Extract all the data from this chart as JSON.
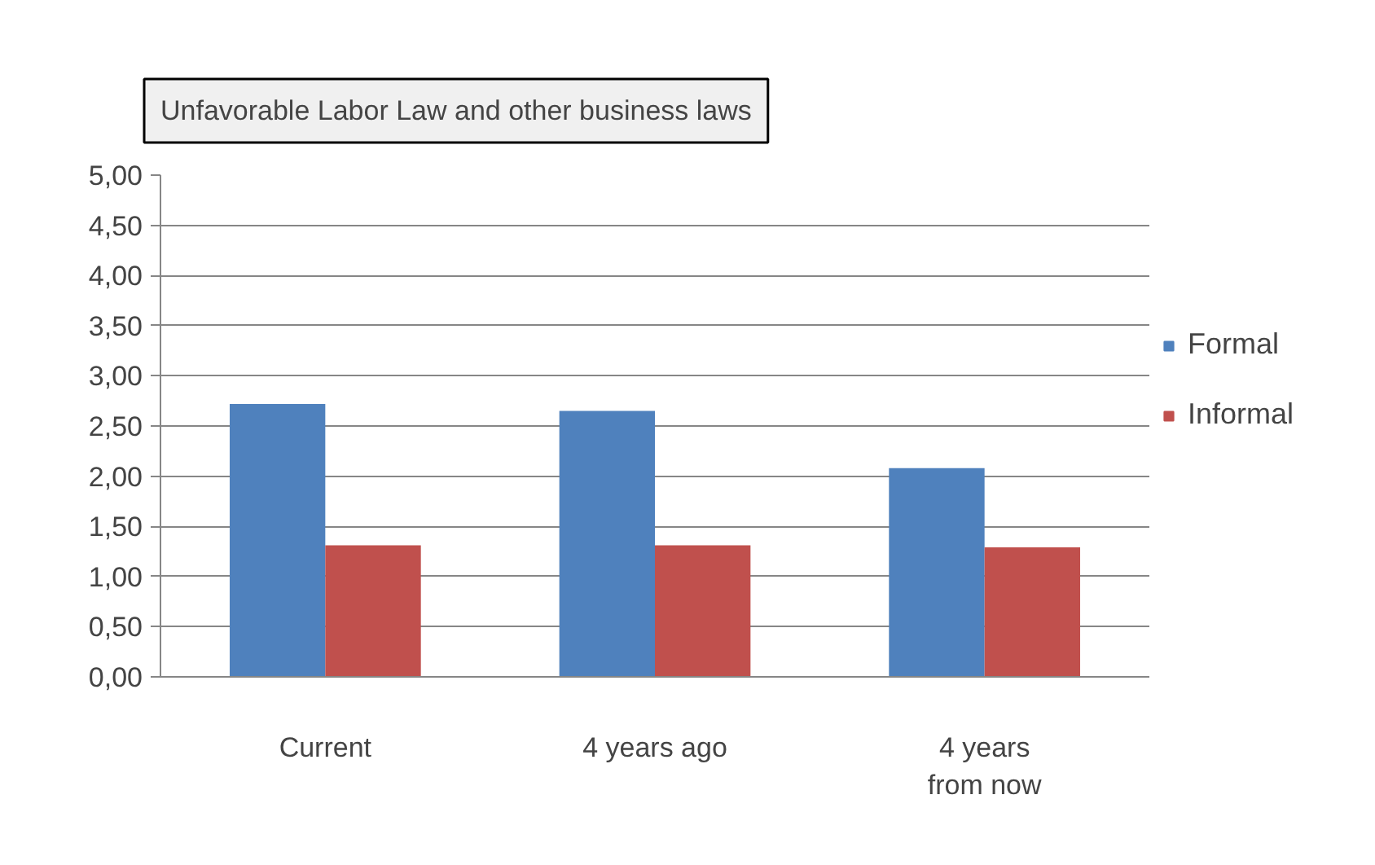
{
  "chart_data": {
    "type": "bar",
    "title": "Unfavorable Labor Law and other business laws",
    "categories": [
      "Current",
      "4 years ago",
      "4 years\nfrom now"
    ],
    "series": [
      {
        "name": "Formal",
        "color": "#4f81bd",
        "values": [
          2.72,
          2.65,
          2.08
        ]
      },
      {
        "name": "Informal",
        "color": "#c0504d",
        "values": [
          1.31,
          1.31,
          1.29
        ]
      }
    ],
    "ylim": [
      0,
      5
    ],
    "yticks": [
      {
        "value": 0,
        "label": "0,00"
      },
      {
        "value": 0.5,
        "label": "0,50"
      },
      {
        "value": 1,
        "label": "1,00"
      },
      {
        "value": 1.5,
        "label": "1,50"
      },
      {
        "value": 2,
        "label": "2,00"
      },
      {
        "value": 2.5,
        "label": "2,50"
      },
      {
        "value": 3,
        "label": "3,00"
      },
      {
        "value": 3.5,
        "label": "3,50"
      },
      {
        "value": 4,
        "label": "4,00"
      },
      {
        "value": 4.5,
        "label": "4,50"
      },
      {
        "value": 5,
        "label": "5,00"
      }
    ],
    "grid": "y",
    "legend": "right"
  }
}
